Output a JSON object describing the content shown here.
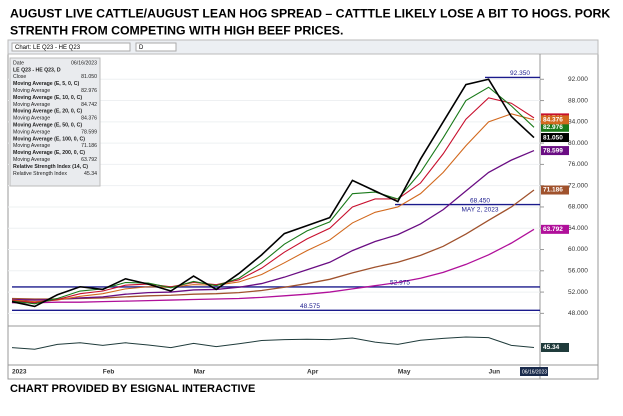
{
  "header": {
    "line1": "AUGUST LIVE CATTLE/AUGUST LEAN HOG SPREAD –     CATTTLE LIKELY LOSE A BIT TO HOGS.  PORK",
    "line2": "STRENTH FROM COMPETING WITH HIGH BEEF PRICES."
  },
  "toolbar": {
    "chart_label": "Chart: LE Q23 - HE Q23",
    "interval": "D"
  },
  "footer": "CHART PROVIDED BY ESIGNAL INTERACTIVE",
  "chart_data": {
    "type": "line",
    "categories": [
      "2023",
      null,
      null,
      null,
      "Feb",
      null,
      null,
      null,
      "Mar",
      null,
      null,
      null,
      null,
      "Apr",
      null,
      null,
      null,
      "May",
      null,
      null,
      null,
      "Jun",
      null,
      "06/16/2023"
    ],
    "ylim": [
      46,
      96
    ],
    "yticks": [
      {
        "value": 92,
        "label": "92.000"
      },
      {
        "value": 88,
        "label": "88.000"
      },
      {
        "value": 84,
        "label": "84.000"
      },
      {
        "value": 80,
        "label": "80.000"
      },
      {
        "value": 76,
        "label": "76.000"
      },
      {
        "value": 72,
        "label": "72.000"
      },
      {
        "value": 68,
        "label": "68.000"
      },
      {
        "value": 64,
        "label": "64.000"
      },
      {
        "value": 60,
        "label": "60.000"
      },
      {
        "value": 56,
        "label": "56.000"
      },
      {
        "value": 52,
        "label": "52.000"
      },
      {
        "value": 48,
        "label": "48.000"
      }
    ],
    "grid": true,
    "series": [
      {
        "name": "Close",
        "color": "#000000",
        "width": 1.6,
        "values": [
          50.2,
          49.3,
          51.5,
          53.0,
          52.5,
          54.5,
          53.5,
          52.2,
          55.0,
          52.5,
          55.5,
          59.0,
          63.0,
          64.5,
          66.0,
          73.0,
          71.0,
          69.0,
          77.0,
          84.0,
          91.0,
          92.0,
          85.0,
          81.05
        ],
        "value_labels": [
          null,
          null,
          null,
          null,
          null,
          null,
          null,
          null,
          null,
          null,
          null,
          null,
          null,
          null,
          null,
          null,
          null,
          null,
          null,
          null,
          null,
          null,
          null,
          "81.050"
        ]
      },
      {
        "name": "Moving Average (E, 5, 0, C)",
        "color": "#1a7a1a",
        "width": 1.1,
        "values": [
          50.3,
          49.8,
          50.8,
          52.2,
          52.6,
          53.8,
          53.7,
          52.8,
          54.0,
          53.2,
          54.6,
          57.5,
          61.0,
          63.5,
          65.2,
          70.5,
          70.8,
          69.5,
          74.5,
          81.0,
          88.0,
          90.5,
          87.0,
          82.976
        ]
      },
      {
        "name": "Moving Average (E, 10, 0, C)",
        "color": "#c8102e",
        "width": 1.1,
        "values": [
          50.4,
          50.0,
          50.6,
          51.7,
          52.2,
          53.3,
          53.5,
          53.0,
          53.8,
          53.4,
          54.3,
          56.5,
          59.5,
          62.0,
          64.0,
          68.0,
          69.5,
          69.5,
          72.5,
          78.0,
          84.5,
          88.5,
          87.5,
          84.742
        ]
      },
      {
        "name": "Moving Average (E, 20, 0, C)",
        "color": "#d2691e",
        "width": 1.1,
        "values": [
          50.5,
          50.2,
          50.5,
          51.2,
          51.7,
          52.6,
          53.0,
          52.9,
          53.4,
          53.3,
          53.9,
          55.3,
          57.5,
          59.8,
          61.8,
          65.0,
          67.0,
          68.0,
          70.5,
          74.5,
          79.5,
          84.0,
          85.5,
          84.376
        ]
      },
      {
        "name": "Moving Average (E, 50, 0, C)",
        "color": "#6a0d83",
        "width": 1.3,
        "values": [
          50.6,
          50.5,
          50.6,
          50.9,
          51.1,
          51.6,
          51.9,
          52.0,
          52.4,
          52.5,
          52.9,
          53.6,
          54.8,
          56.2,
          57.6,
          59.8,
          61.5,
          62.8,
          64.8,
          67.5,
          71.0,
          74.5,
          76.8,
          78.599
        ]
      },
      {
        "name": "Moving Average (E, 100, 0, C)",
        "color": "#a0522d",
        "width": 1.3,
        "values": [
          50.8,
          50.7,
          50.7,
          50.8,
          50.9,
          51.1,
          51.3,
          51.4,
          51.6,
          51.7,
          51.9,
          52.3,
          52.9,
          53.6,
          54.4,
          55.6,
          56.7,
          57.6,
          58.9,
          60.6,
          62.9,
          65.5,
          68.0,
          71.186
        ]
      },
      {
        "name": "Moving Average (E, 200, 0, C)",
        "color": "#b0109a",
        "width": 1.3,
        "values": [
          50.0,
          50.0,
          50.1,
          50.1,
          50.2,
          50.3,
          50.4,
          50.5,
          50.6,
          50.7,
          50.8,
          51.0,
          51.3,
          51.6,
          52.0,
          52.6,
          53.2,
          53.8,
          54.6,
          55.7,
          57.2,
          59.0,
          61.2,
          63.792
        ]
      }
    ],
    "short_names": [
      "Close",
      "Moving Average"
    ],
    "hlines": [
      {
        "value": 92.35,
        "label": "92.350"
      },
      {
        "value": 68.45,
        "label": "68.450",
        "note": "MAY 2, 2023"
      },
      {
        "value": 52.975,
        "label": "52.975"
      },
      {
        "value": 48.575,
        "label": "48.575"
      }
    ],
    "hline_color": "#1a1a8c",
    "data_window": {
      "date_label": "Date",
      "date": "06/16/2023",
      "symbol": "LE Q23 - HE Q23, D"
    },
    "rsi": {
      "name": "Relative Strength Index (14, C)",
      "short_name": "Relative Strength Index",
      "color": "#1f3b3b",
      "ylim": [
        0,
        100
      ],
      "values": [
        45,
        40,
        55,
        60,
        52,
        60,
        53,
        45,
        58,
        48,
        57,
        67,
        70,
        71,
        70,
        75,
        62,
        55,
        68,
        74,
        78,
        76,
        52,
        45.34
      ]
    }
  }
}
